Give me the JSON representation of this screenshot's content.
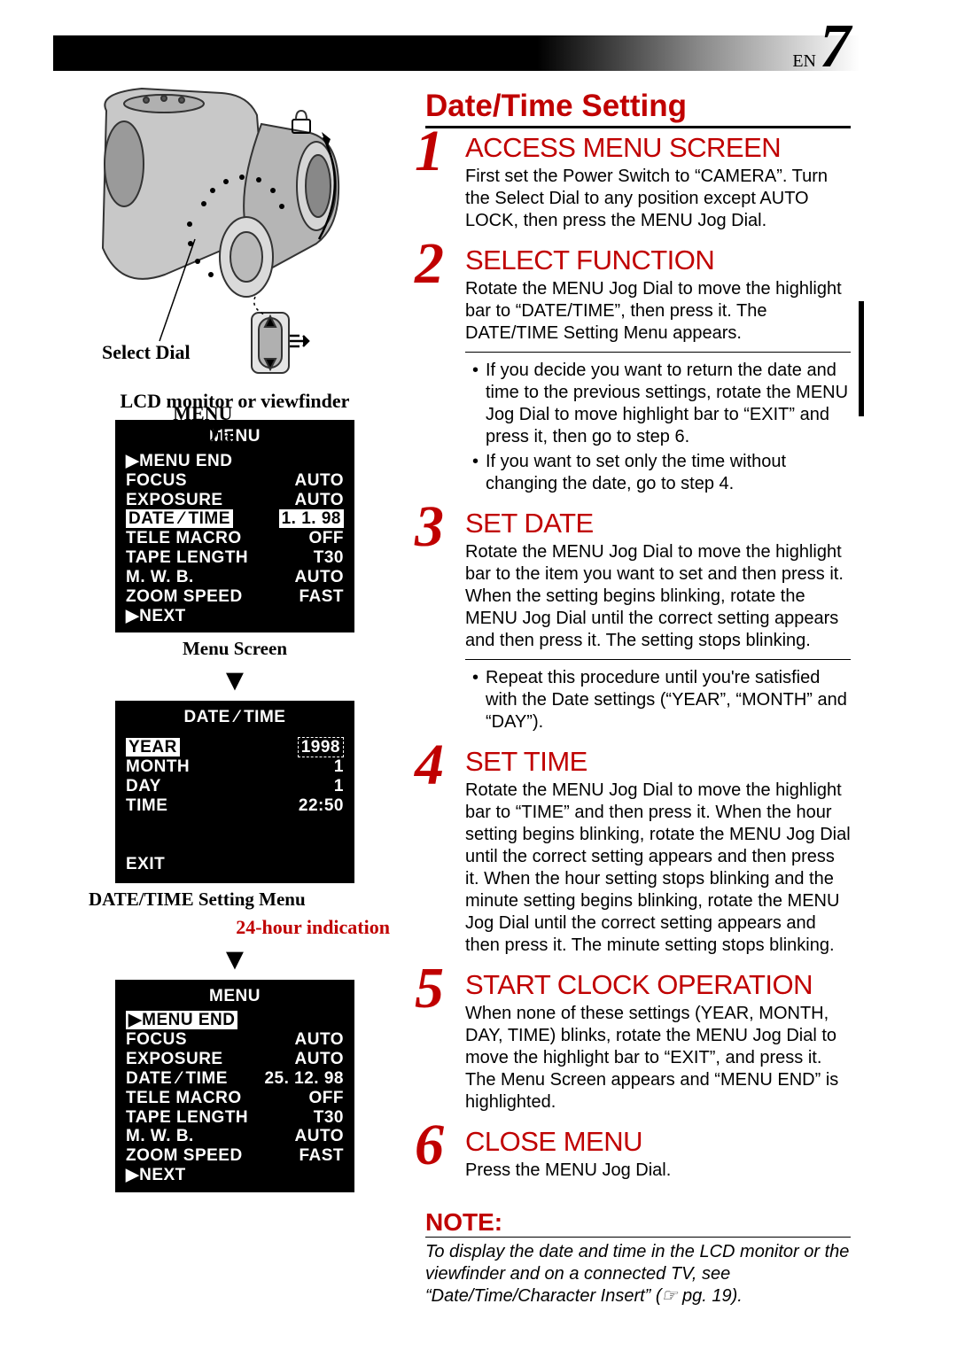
{
  "page": {
    "lang_prefix": "EN",
    "number": "7"
  },
  "section_title": "Date/Time Setting",
  "diagram": {
    "select_dial_label": "Select Dial",
    "menu_jog_line1": "MENU",
    "menu_jog_line2": "Jog Dial",
    "stroke_color": "#333333",
    "fill_light": "#bdbdbd",
    "fill_mid": "#9a9a9a",
    "fill_dark": "#6e6e6e",
    "dot_color": "#000000"
  },
  "lcd_title": "LCD monitor or viewfinder",
  "menu1": {
    "title": "MENU",
    "rows": [
      {
        "l": "▶MENU END",
        "r": ""
      },
      {
        "l": "FOCUS",
        "r": "AUTO"
      },
      {
        "l": "EXPOSURE",
        "r": "AUTO"
      },
      {
        "l": "DATE ⁄ TIME",
        "r": "1. 1. 98",
        "hl": true
      },
      {
        "l": "TELE  MACRO",
        "r": "OFF"
      },
      {
        "l": "TAPE  LENGTH",
        "r": "T30"
      },
      {
        "l": "M. W. B.",
        "r": "AUTO"
      },
      {
        "l": "ZOOM SPEED",
        "r": "FAST"
      },
      {
        "l": "▶NEXT",
        "r": ""
      }
    ]
  },
  "menu1_caption": "Menu Screen",
  "datetime_menu": {
    "title": "DATE ⁄ TIME",
    "rows": [
      {
        "l": "YEAR",
        "r": "1998",
        "hl_l": true,
        "box_r": true
      },
      {
        "l": "MONTH",
        "r": "1"
      },
      {
        "l": "DAY",
        "r": "1"
      },
      {
        "l": "TIME",
        "r": "22:50"
      }
    ],
    "exit": "EXIT"
  },
  "datetime_caption": "DATE/TIME Setting Menu",
  "hour24_caption": "24-hour indication",
  "menu2": {
    "title": "MENU",
    "rows": [
      {
        "l": "▶MENU END",
        "r": "",
        "hl": true
      },
      {
        "l": "FOCUS",
        "r": "AUTO"
      },
      {
        "l": "EXPOSURE",
        "r": "AUTO"
      },
      {
        "l": "DATE ⁄ TIME",
        "r": "25. 12. 98"
      },
      {
        "l": "TELE  MACRO",
        "r": "OFF"
      },
      {
        "l": "TAPE  LENGTH",
        "r": "T30"
      },
      {
        "l": "M. W. B.",
        "r": "AUTO"
      },
      {
        "l": "ZOOM SPEED",
        "r": "FAST"
      },
      {
        "l": "▶NEXT",
        "r": ""
      }
    ]
  },
  "steps": [
    {
      "num": "1",
      "head": "ACCESS MENU SCREEN",
      "body": "First set the Power Switch to “CAMERA”. Turn the Select Dial to any position except AUTO LOCK, then press the MENU Jog Dial.",
      "bullets": []
    },
    {
      "num": "2",
      "head": "SELECT FUNCTION",
      "body": "Rotate the MENU Jog Dial to move the highlight bar to “DATE/TIME”, then press it. The DATE/TIME Setting Menu appears.",
      "bullets": [
        "If you decide you want to return the date and time to the previous settings, rotate the MENU Jog Dial to move highlight bar to “EXIT” and press it, then go to step 6.",
        "If you want to set only the time without changing the date, go to step 4."
      ]
    },
    {
      "num": "3",
      "head": "SET DATE",
      "body": "Rotate the MENU Jog Dial to move the highlight bar to the item you want to set and then press it. When the setting begins blinking, rotate the MENU Jog Dial until the correct setting appears and then press it. The setting stops blinking.",
      "bullets": [
        "Repeat this procedure until you're satisfied with the Date settings (“YEAR”, “MONTH” and “DAY”)."
      ]
    },
    {
      "num": "4",
      "head": "SET TIME",
      "body": "Rotate the MENU Jog Dial to move the highlight bar to “TIME” and then press it. When the hour setting begins blinking, rotate the MENU Jog Dial until the correct setting appears and then press it. When the hour setting stops blinking and the minute setting begins blinking, rotate the MENU Jog Dial until the correct setting appears and then press it. The minute setting stops blinking.",
      "bullets": []
    },
    {
      "num": "5",
      "head": "START CLOCK OPERATION",
      "body": "When none of these settings (YEAR, MONTH, DAY, TIME) blinks, rotate the MENU Jog Dial to move the highlight bar to “EXIT”, and press it. The Menu Screen appears and “MENU END” is highlighted.",
      "bullets": []
    },
    {
      "num": "6",
      "head": "CLOSE MENU",
      "body": "Press the MENU Jog Dial.",
      "bullets": []
    }
  ],
  "note": {
    "title": "NOTE:",
    "body": "To display the date and time in the LCD monitor or the viewfinder and on a connected TV, see “Date/Time/Character Insert” (☞ pg. 19)."
  },
  "colors": {
    "accent_red": "#c00000",
    "black": "#000000",
    "white": "#ffffff"
  }
}
